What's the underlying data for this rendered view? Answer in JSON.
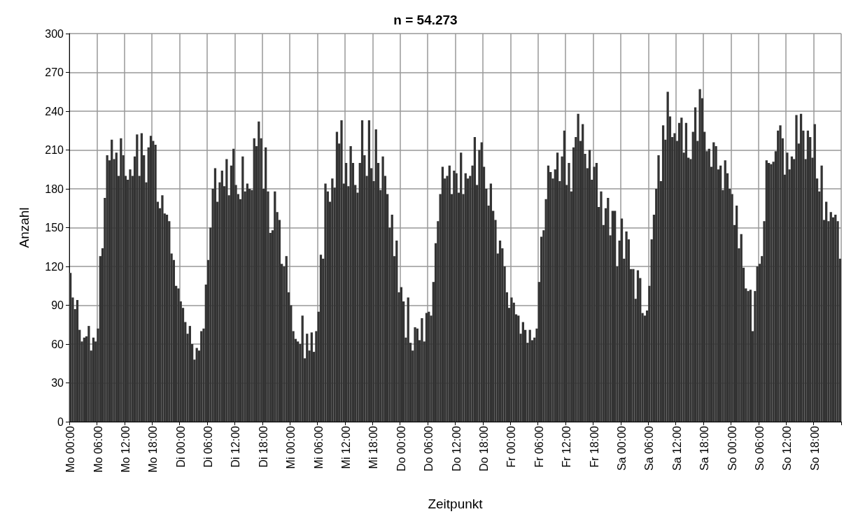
{
  "chart_data": {
    "type": "bar",
    "title": "n = 54.273",
    "xlabel": "Zeitpunkt",
    "ylabel": "Anzahl",
    "categories": [
      "Mo 00:00",
      null,
      null,
      null,
      null,
      null,
      null,
      null,
      null,
      null,
      null,
      null,
      "Mo 06:00",
      null,
      null,
      null,
      null,
      null,
      null,
      null,
      null,
      null,
      null,
      null,
      "Mo 12:00",
      null,
      null,
      null,
      null,
      null,
      null,
      null,
      null,
      null,
      null,
      null,
      "Mo 18:00",
      null,
      null,
      null,
      null,
      null,
      null,
      null,
      null,
      null,
      null,
      null,
      "Di 00:00",
      null,
      null,
      null,
      null,
      null,
      null,
      null,
      null,
      null,
      null,
      null,
      "Di 06:00",
      null,
      null,
      null,
      null,
      null,
      null,
      null,
      null,
      null,
      null,
      null,
      "Di 12:00",
      null,
      null,
      null,
      null,
      null,
      null,
      null,
      null,
      null,
      null,
      null,
      "Di 18:00",
      null,
      null,
      null,
      null,
      null,
      null,
      null,
      null,
      null,
      null,
      null,
      "Mi 00:00",
      null,
      null,
      null,
      null,
      null,
      null,
      null,
      null,
      null,
      null,
      null,
      "Mi 06:00",
      null,
      null,
      null,
      null,
      null,
      null,
      null,
      null,
      null,
      null,
      null,
      "Mi 12:00",
      null,
      null,
      null,
      null,
      null,
      null,
      null,
      null,
      null,
      null,
      null,
      "Mi 18:00",
      null,
      null,
      null,
      null,
      null,
      null,
      null,
      null,
      null,
      null,
      null,
      "Do 00:00",
      null,
      null,
      null,
      null,
      null,
      null,
      null,
      null,
      null,
      null,
      null,
      "Do 06:00",
      null,
      null,
      null,
      null,
      null,
      null,
      null,
      null,
      null,
      null,
      null,
      "Do 12:00",
      null,
      null,
      null,
      null,
      null,
      null,
      null,
      null,
      null,
      null,
      null,
      "Do 18:00",
      null,
      null,
      null,
      null,
      null,
      null,
      null,
      null,
      null,
      null,
      null,
      "Fr 00:00",
      null,
      null,
      null,
      null,
      null,
      null,
      null,
      null,
      null,
      null,
      null,
      "Fr 06:00",
      null,
      null,
      null,
      null,
      null,
      null,
      null,
      null,
      null,
      null,
      null,
      "Fr 12:00",
      null,
      null,
      null,
      null,
      null,
      null,
      null,
      null,
      null,
      null,
      null,
      "Fr 18:00",
      null,
      null,
      null,
      null,
      null,
      null,
      null,
      null,
      null,
      null,
      null,
      "Sa 00:00",
      null,
      null,
      null,
      null,
      null,
      null,
      null,
      null,
      null,
      null,
      null,
      "Sa 06:00",
      null,
      null,
      null,
      null,
      null,
      null,
      null,
      null,
      null,
      null,
      null,
      "Sa 12:00",
      null,
      null,
      null,
      null,
      null,
      null,
      null,
      null,
      null,
      null,
      null,
      "Sa 18:00",
      null,
      null,
      null,
      null,
      null,
      null,
      null,
      null,
      null,
      null,
      null,
      "So 00:00",
      null,
      null,
      null,
      null,
      null,
      null,
      null,
      null,
      null,
      null,
      null,
      "So 06:00",
      null,
      null,
      null,
      null,
      null,
      null,
      null,
      null,
      null,
      null,
      null,
      "So 12:00",
      null,
      null,
      null,
      null,
      null,
      null,
      null,
      null,
      null,
      null,
      null,
      "So 18:00",
      null,
      null,
      null,
      null,
      null,
      null,
      null,
      null,
      null,
      null,
      null
    ],
    "values": [
      115,
      96,
      87,
      94,
      71,
      62,
      65,
      66,
      74,
      55,
      65,
      62,
      72,
      128,
      134,
      173,
      206,
      202,
      218,
      203,
      208,
      190,
      219,
      206,
      190,
      187,
      195,
      190,
      205,
      222,
      190,
      223,
      206,
      185,
      212,
      221,
      217,
      214,
      170,
      165,
      175,
      161,
      160,
      155,
      130,
      125,
      105,
      103,
      93,
      88,
      77,
      68,
      74,
      60,
      48,
      57,
      55,
      70,
      72,
      106,
      125,
      150,
      180,
      196,
      170,
      185,
      194,
      182,
      203,
      175,
      198,
      211,
      183,
      176,
      172,
      205,
      178,
      184,
      180,
      179,
      219,
      213,
      232,
      219,
      180,
      212,
      178,
      146,
      148,
      178,
      162,
      156,
      122,
      120,
      128,
      100,
      90,
      70,
      64,
      62,
      60,
      82,
      49,
      68,
      55,
      69,
      54,
      70,
      85,
      129,
      126,
      184,
      178,
      170,
      188,
      181,
      224,
      215,
      233,
      184,
      200,
      182,
      213,
      200,
      183,
      177,
      200,
      233,
      206,
      190,
      233,
      196,
      186,
      226,
      200,
      179,
      205,
      190,
      176,
      150,
      160,
      128,
      140,
      100,
      104,
      93,
      65,
      96,
      61,
      55,
      73,
      72,
      63,
      80,
      62,
      84,
      85,
      82,
      108,
      138,
      155,
      176,
      197,
      188,
      190,
      198,
      176,
      194,
      192,
      177,
      208,
      176,
      192,
      188,
      190,
      198,
      220,
      183,
      210,
      216,
      197,
      180,
      167,
      184,
      163,
      156,
      130,
      140,
      134,
      120,
      100,
      88,
      96,
      92,
      83,
      82,
      68,
      77,
      71,
      61,
      71,
      63,
      65,
      72,
      108,
      143,
      148,
      172,
      198,
      193,
      188,
      195,
      208,
      186,
      205,
      225,
      183,
      200,
      178,
      212,
      220,
      238,
      217,
      230,
      207,
      196,
      210,
      187,
      197,
      200,
      166,
      178,
      152,
      165,
      173,
      144,
      163,
      163,
      120,
      140,
      157,
      126,
      147,
      141,
      118,
      118,
      95,
      117,
      111,
      84,
      82,
      86,
      105,
      141,
      160,
      180,
      206,
      186,
      229,
      218,
      255,
      236,
      220,
      223,
      217,
      231,
      235,
      208,
      231,
      204,
      203,
      224,
      243,
      217,
      257,
      250,
      224,
      209,
      211,
      197,
      216,
      213,
      195,
      198,
      179,
      202,
      192,
      180,
      176,
      152,
      167,
      134,
      145,
      119,
      103,
      101,
      102,
      70,
      101,
      120,
      122,
      128,
      155,
      202,
      200,
      199,
      201,
      209,
      225,
      229,
      219,
      191,
      208,
      195,
      205,
      203,
      237,
      215,
      238,
      225,
      203,
      225,
      220,
      204,
      230,
      188,
      178,
      198,
      156,
      170,
      155,
      162,
      158,
      160,
      155,
      126
    ],
    "color": "#333333",
    "ylim": [
      0,
      300
    ],
    "yticks": [
      0,
      30,
      60,
      90,
      120,
      150,
      180,
      210,
      240,
      270,
      300
    ],
    "grid": true
  }
}
